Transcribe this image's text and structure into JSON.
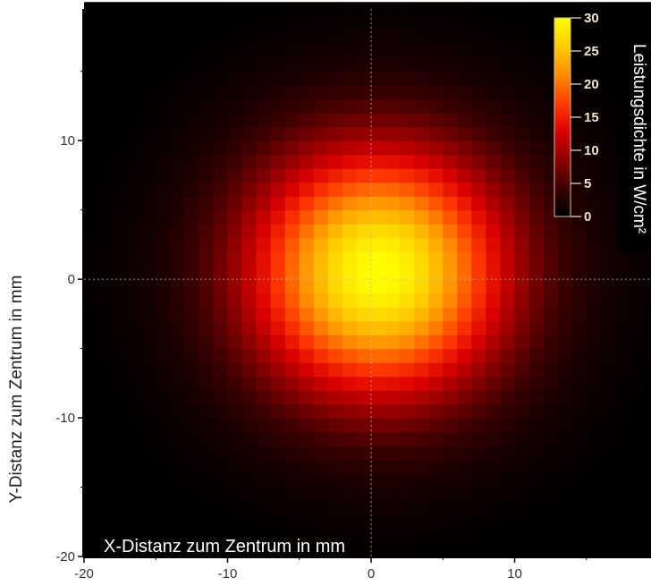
{
  "chart_data": {
    "type": "heatmap",
    "title": "",
    "xlabel": "X-Distanz zum Zentrum in mm",
    "ylabel": "Y-Distanz zum Zentrum in mm",
    "xlim": [
      -20,
      19.5
    ],
    "ylim": [
      -20,
      19.5
    ],
    "x_ticks": [
      -20,
      -10,
      0,
      10
    ],
    "y_ticks": [
      -20,
      -10,
      0,
      10
    ],
    "x_tick_labels": [
      "-20",
      "-10",
      "0",
      "10"
    ],
    "y_tick_labels": [
      "-20",
      "-10",
      "0",
      "10"
    ],
    "grid_resolution_mm": 1,
    "distribution": {
      "shape": "gaussian",
      "center_x": 0.5,
      "center_y": 0.5,
      "sigma_mm": 6.5,
      "peak": 30
    },
    "crosshair": {
      "x": 0,
      "y": 0
    },
    "colorbar": {
      "label": "Leistungsdichte in W/cm²",
      "min": 0,
      "max": 30,
      "ticks": [
        0,
        5,
        10,
        15,
        20,
        25,
        30
      ],
      "tick_labels": [
        "0",
        "5",
        "10",
        "15",
        "20",
        "25",
        "30"
      ],
      "colormap": [
        "#000000",
        "#3c0000",
        "#8c0000",
        "#dc0000",
        "#ff3c00",
        "#ff8c00",
        "#ffcc00",
        "#ffff00"
      ],
      "placement": "top-right"
    }
  }
}
